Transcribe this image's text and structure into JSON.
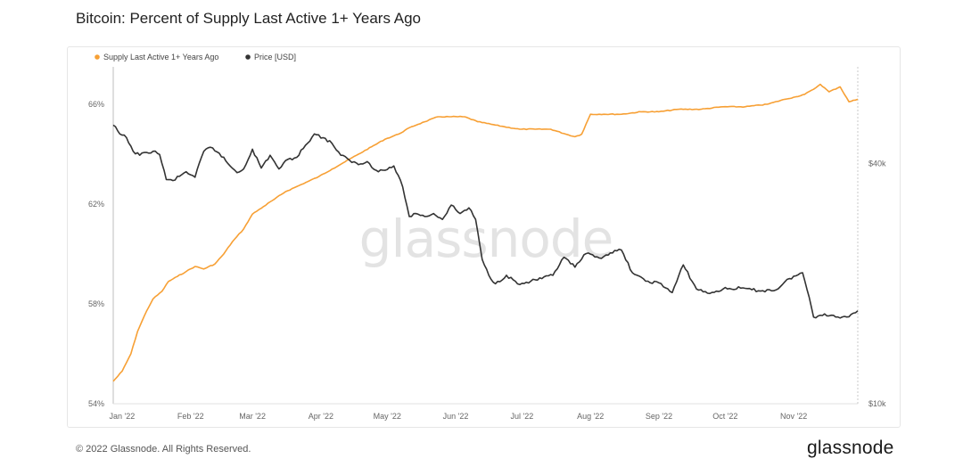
{
  "header": {
    "title": "Bitcoin: Percent of Supply Last Active 1+ Years Ago"
  },
  "footer": {
    "copyright": "© 2022 Glassnode. All Rights Reserved.",
    "logo": "glassnode"
  },
  "watermark": "glassnode",
  "colors": {
    "supply": "#f7a035",
    "price": "#333333",
    "grid": "#f0f0f0",
    "axis": "#bdbdbd"
  },
  "chart_data": {
    "type": "line",
    "title": "Bitcoin: Percent of Supply Last Active 1+ Years Ago",
    "legend": {
      "position": "top-left",
      "entries": [
        "Supply Last Active 1+ Years Ago",
        "Price [USD]"
      ]
    },
    "x_ticks": [
      "Jan '22",
      "Feb '22",
      "Mar '22",
      "Apr '22",
      "May '22",
      "Jun '22",
      "Jul '22",
      "Aug '22",
      "Sep '22",
      "Oct '22",
      "Nov '22"
    ],
    "x_range": [
      "2021-12-28",
      "2022-11-30"
    ],
    "left_axis": {
      "ticks": [
        "54%",
        "58%",
        "62%",
        "66%"
      ],
      "ylim": [
        54,
        67.5
      ],
      "log": false
    },
    "right_axis": {
      "ticks": [
        "$10k",
        "$40k"
      ],
      "ylim": [
        10000,
        70000
      ],
      "log": true
    },
    "series": [
      {
        "name": "Supply Last Active 1+ Years Ago",
        "axis": "left",
        "x": [
          "2021-12-28",
          "2022-01-01",
          "2022-01-05",
          "2022-01-08",
          "2022-01-12",
          "2022-01-15",
          "2022-01-19",
          "2022-01-22",
          "2022-01-26",
          "2022-01-30",
          "2022-02-03",
          "2022-02-07",
          "2022-02-12",
          "2022-02-16",
          "2022-02-20",
          "2022-02-25",
          "2022-03-01",
          "2022-03-06",
          "2022-03-11",
          "2022-03-16",
          "2022-03-21",
          "2022-03-26",
          "2022-03-31",
          "2022-04-06",
          "2022-04-12",
          "2022-04-18",
          "2022-04-24",
          "2022-04-30",
          "2022-05-06",
          "2022-05-12",
          "2022-05-18",
          "2022-05-24",
          "2022-05-30",
          "2022-06-05",
          "2022-06-11",
          "2022-06-17",
          "2022-06-23",
          "2022-06-30",
          "2022-07-07",
          "2022-07-14",
          "2022-07-21",
          "2022-07-25",
          "2022-07-28",
          "2022-08-01",
          "2022-08-07",
          "2022-08-15",
          "2022-08-24",
          "2022-09-01",
          "2022-09-10",
          "2022-09-20",
          "2022-09-30",
          "2022-10-10",
          "2022-10-20",
          "2022-10-28",
          "2022-11-02",
          "2022-11-06",
          "2022-11-10",
          "2022-11-13",
          "2022-11-17",
          "2022-11-22",
          "2022-11-26",
          "2022-11-30"
        ],
        "values": [
          54.9,
          55.3,
          56.0,
          56.9,
          57.7,
          58.2,
          58.5,
          58.9,
          59.1,
          59.3,
          59.5,
          59.4,
          59.6,
          60.0,
          60.5,
          61.0,
          61.6,
          61.9,
          62.2,
          62.5,
          62.7,
          62.9,
          63.1,
          63.4,
          63.7,
          64.0,
          64.3,
          64.6,
          64.8,
          65.1,
          65.3,
          65.5,
          65.5,
          65.5,
          65.3,
          65.2,
          65.1,
          65.0,
          65.0,
          65.0,
          64.8,
          64.7,
          64.8,
          65.6,
          65.6,
          65.6,
          65.7,
          65.7,
          65.8,
          65.8,
          65.9,
          65.9,
          66.0,
          66.2,
          66.3,
          66.4,
          66.6,
          66.8,
          66.5,
          66.7,
          66.1,
          66.2
        ]
      },
      {
        "name": "Price [USD]",
        "axis": "right",
        "x": [
          "2021-12-28",
          "2021-12-31",
          "2022-01-03",
          "2022-01-06",
          "2022-01-09",
          "2022-01-12",
          "2022-01-15",
          "2022-01-18",
          "2022-01-21",
          "2022-01-24",
          "2022-01-27",
          "2022-01-30",
          "2022-02-03",
          "2022-02-07",
          "2022-02-10",
          "2022-02-14",
          "2022-02-18",
          "2022-02-22",
          "2022-02-25",
          "2022-03-01",
          "2022-03-05",
          "2022-03-09",
          "2022-03-13",
          "2022-03-17",
          "2022-03-21",
          "2022-03-25",
          "2022-03-29",
          "2022-04-02",
          "2022-04-06",
          "2022-04-10",
          "2022-04-14",
          "2022-04-18",
          "2022-04-22",
          "2022-04-26",
          "2022-04-30",
          "2022-05-04",
          "2022-05-08",
          "2022-05-11",
          "2022-05-14",
          "2022-05-18",
          "2022-05-22",
          "2022-05-26",
          "2022-05-30",
          "2022-06-03",
          "2022-06-07",
          "2022-06-10",
          "2022-06-13",
          "2022-06-16",
          "2022-06-19",
          "2022-06-24",
          "2022-06-30",
          "2022-07-05",
          "2022-07-10",
          "2022-07-15",
          "2022-07-20",
          "2022-07-25",
          "2022-07-30",
          "2022-08-05",
          "2022-08-10",
          "2022-08-15",
          "2022-08-20",
          "2022-08-26",
          "2022-09-01",
          "2022-09-07",
          "2022-09-12",
          "2022-09-18",
          "2022-09-24",
          "2022-09-30",
          "2022-10-08",
          "2022-10-16",
          "2022-10-24",
          "2022-10-30",
          "2022-11-05",
          "2022-11-08",
          "2022-11-10",
          "2022-11-15",
          "2022-11-20",
          "2022-11-25",
          "2022-11-30"
        ],
        "values": [
          50000,
          47500,
          46500,
          43000,
          42000,
          42700,
          43000,
          42200,
          36500,
          36300,
          37200,
          38200,
          37000,
          43000,
          44000,
          42500,
          40000,
          38000,
          38800,
          43500,
          39000,
          42000,
          38800,
          41000,
          41500,
          44500,
          47500,
          46500,
          45000,
          42000,
          40800,
          39800,
          40500,
          38500,
          38500,
          39500,
          35000,
          29500,
          30000,
          29500,
          30000,
          29000,
          31500,
          30000,
          31000,
          29000,
          23000,
          21000,
          20000,
          21000,
          19900,
          20300,
          20600,
          21000,
          23300,
          22000,
          23800,
          23200,
          23900,
          24300,
          21300,
          20300,
          20100,
          19000,
          22300,
          19400,
          18900,
          19400,
          19500,
          19200,
          19300,
          20600,
          21300,
          18500,
          16500,
          16800,
          16500,
          16500,
          17100
        ]
      }
    ]
  }
}
